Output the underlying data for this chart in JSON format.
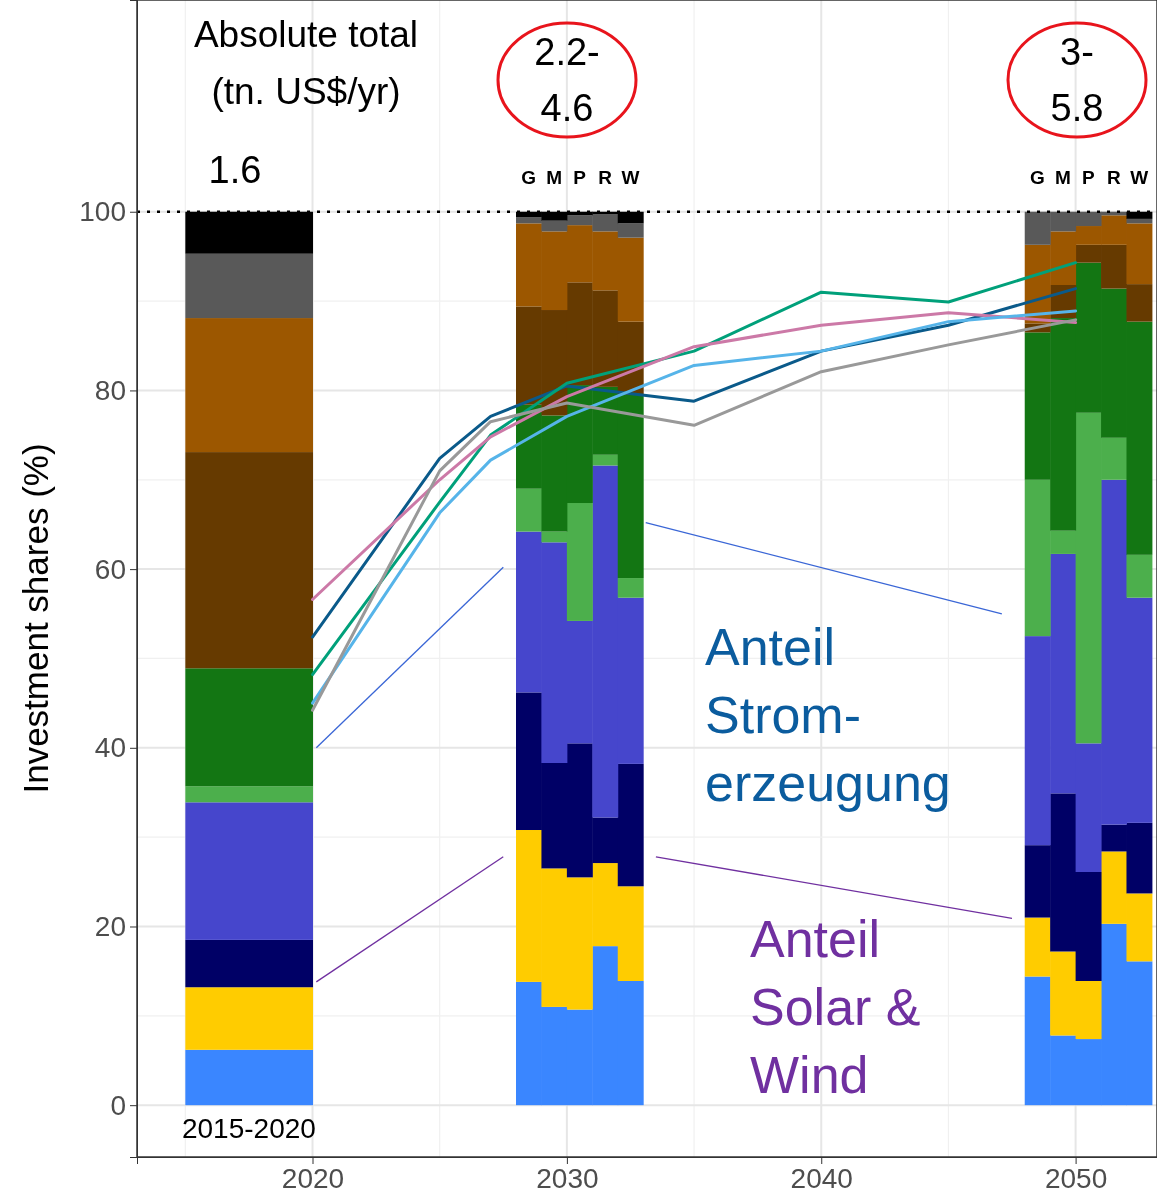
{
  "chart_data": {
    "type": "bar",
    "stacked": true,
    "ylabel": "Investment shares (%)",
    "x": [
      2017.5,
      2028.5,
      2029.5,
      2030.5,
      2031.5,
      2032.5,
      2048.5,
      2049.5,
      2050.5,
      2051.5,
      2052.5
    ],
    "xlim": [
      2013.1,
      2053.2
    ],
    "xticks": [
      2020,
      2030,
      2040,
      2050
    ],
    "ylim": [
      -5.8,
      123.7
    ],
    "yticks": [
      0,
      20,
      40,
      60,
      80,
      100
    ],
    "grid": true,
    "series": [
      {
        "color": "#3a86ff",
        "values": [
          6.2,
          13.8,
          11.0,
          10.7,
          17.8,
          13.9,
          14.4,
          7.8,
          7.4,
          20.3,
          16.1
        ]
      },
      {
        "color": "#ffcc00",
        "values": [
          7.0,
          17.0,
          15.5,
          14.8,
          9.3,
          10.6,
          6.6,
          9.4,
          6.5,
          8.1,
          7.6
        ]
      },
      {
        "color": "#000066",
        "values": [
          5.3,
          15.4,
          11.8,
          15.0,
          5.1,
          13.7,
          8.1,
          17.7,
          12.2,
          3.0,
          7.9
        ]
      },
      {
        "color": "#4646cc",
        "values": [
          15.4,
          18.0,
          24.7,
          13.7,
          39.4,
          18.6,
          23.4,
          26.8,
          14.4,
          38.6,
          25.2
        ]
      },
      {
        "color": "#4caf4c",
        "values": [
          1.8,
          4.8,
          1.2,
          13.2,
          1.2,
          2.2,
          17.5,
          2.6,
          37.0,
          4.7,
          4.8
        ]
      },
      {
        "color": "#137613",
        "values": [
          13.2,
          9.4,
          13.0,
          13.2,
          7.6,
          20.5,
          16.5,
          23.8,
          16.8,
          16.7,
          26.1
        ]
      },
      {
        "color": "#663a00",
        "values": [
          24.2,
          11.0,
          11.8,
          11.5,
          10.8,
          8.2,
          1.0,
          3.7,
          2.0,
          4.9,
          4.2
        ]
      },
      {
        "color": "#9c5700",
        "values": [
          15.0,
          9.3,
          8.8,
          6.4,
          6.6,
          9.4,
          8.8,
          6.0,
          2.1,
          3.3,
          6.8
        ]
      },
      {
        "color": "#595959",
        "values": [
          7.2,
          0.7,
          1.2,
          1.1,
          1.9,
          1.6,
          3.7,
          2.2,
          1.6,
          0.4,
          0.5
        ]
      },
      {
        "color": "#000000",
        "values": [
          4.7,
          0.6,
          1.0,
          0.4,
          0.3,
          1.3,
          0.0,
          0.0,
          0.0,
          0.0,
          0.8
        ]
      },
      {
        "type": "line",
        "color": "#0a5a8a",
        "x": [
          2020,
          2025,
          2027,
          2030,
          2035,
          2040,
          2045,
          2050
        ],
        "values": [
          52.4,
          72.4,
          77.1,
          80.5,
          78.8,
          84.4,
          87.3,
          91.4
        ]
      },
      {
        "type": "line",
        "color": "#00a07a",
        "x": [
          2020,
          2025,
          2027,
          2030,
          2035,
          2040,
          2045,
          2050
        ],
        "values": [
          48.2,
          67.5,
          75.0,
          80.8,
          84.4,
          91.0,
          89.9,
          94.3
        ]
      },
      {
        "type": "line",
        "color": "#cc79a7",
        "x": [
          2020,
          2025,
          2027,
          2030,
          2035,
          2040,
          2045,
          2050
        ],
        "values": [
          56.6,
          70.0,
          74.8,
          79.3,
          84.9,
          87.3,
          88.7,
          87.6
        ]
      },
      {
        "type": "line",
        "color": "#56b4e9",
        "x": [
          2020,
          2025,
          2027,
          2030,
          2035,
          2040,
          2045,
          2050
        ],
        "values": [
          45.0,
          66.3,
          72.2,
          77.1,
          82.8,
          84.4,
          87.7,
          88.9
        ]
      },
      {
        "type": "line",
        "color": "#999999",
        "x": [
          2020,
          2025,
          2027,
          2030,
          2035,
          2040,
          2045,
          2050
        ],
        "values": [
          44.2,
          71.0,
          76.5,
          78.6,
          76.1,
          82.1,
          85.1,
          87.9
        ]
      }
    ],
    "ref_lines": [
      {
        "axis": "y",
        "value": 100,
        "color": "#000000",
        "line_style": "dotted"
      }
    ],
    "annotations": [
      "Absolute total (tn. US$/yr)",
      "1.6",
      "2.2-4.6",
      "3-5.8",
      "Anteil Strom-erzeugung",
      "Anteil Solar & Wind",
      "G",
      "M",
      "P",
      "R",
      "W",
      "G",
      "M",
      "P",
      "R",
      "W",
      "2015-2020"
    ]
  }
}
